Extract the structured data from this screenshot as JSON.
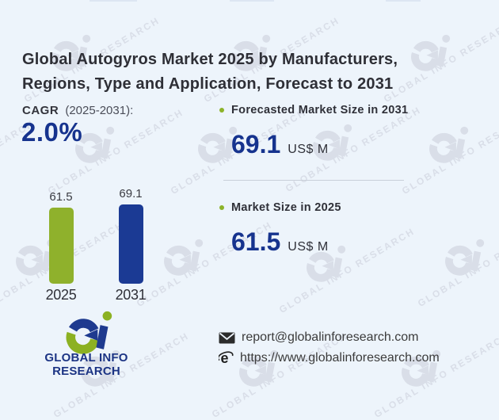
{
  "title": {
    "line1": "Global Autogyros Market 2025 by Manufacturers,",
    "line2": "Regions, Type and Application, Forecast to 2031"
  },
  "cagr": {
    "label": "CAGR",
    "period": "(2025-2031):",
    "value": "2.0%"
  },
  "stats": {
    "forecast": {
      "label": "Forecasted Market Size in 2031",
      "value": "69.1",
      "unit": "US$ M"
    },
    "current": {
      "label": "Market Size in 2025",
      "value": "61.5",
      "unit": "US$ M"
    }
  },
  "chart_data": {
    "type": "bar",
    "categories": [
      "2025",
      "2031"
    ],
    "values": [
      61.5,
      69.1
    ],
    "value_labels": [
      "61.5",
      "69.1"
    ],
    "bar_colors": [
      "#8fb12c",
      "#1b3a94"
    ],
    "unit": "US$ M",
    "title": "",
    "xlabel": "",
    "ylabel": "",
    "ylim": [
      0,
      69.1
    ],
    "grid": false,
    "legend": false
  },
  "footer": {
    "logo_text": "GLOBAL INFO RESEARCH",
    "email": "report@globalinforesearch.com",
    "website": "https://www.globalinforesearch.com"
  },
  "icons": {
    "email": "envelope-icon",
    "website": "browser-e-icon",
    "stat_bullet": "green-dot",
    "logo": "gi-logo-mark"
  },
  "watermark": {
    "text": "GLOBAL INFO RESEARCH",
    "glyph": "gi-logo-mark",
    "positions": [
      [
        63,
        42
      ],
      [
        290,
        42
      ],
      [
        517,
        42
      ],
      [
        -95,
        172
      ],
      [
        93,
        158
      ],
      [
        248,
        158
      ],
      [
        393,
        155
      ],
      [
        540,
        158
      ],
      [
        18,
        300
      ],
      [
        205,
        300
      ],
      [
        385,
        308
      ],
      [
        560,
        300
      ],
      [
        100,
        440
      ],
      [
        300,
        440
      ],
      [
        505,
        440
      ]
    ]
  },
  "colors": {
    "background": "#edf4fb",
    "accent_blue": "#16338e",
    "accent_green": "#8cb122",
    "bar_green": "#8fb12c",
    "bar_blue": "#1b3a94",
    "title_text": "#2e2f36",
    "body_text": "#3b3b3b",
    "divider": "#c9cfd9",
    "watermark": "#d9dee8"
  }
}
